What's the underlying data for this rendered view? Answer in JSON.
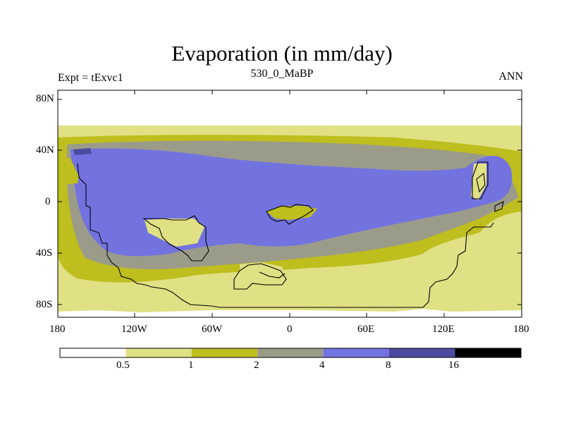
{
  "header": {
    "title": "Evaporation (in mm/day)",
    "left": "Expt = tExvc1",
    "center": "530_0_MaBP",
    "right": "ANN"
  },
  "axes": {
    "lat_ticks": [
      "80N",
      "40N",
      "0",
      "40S",
      "80S"
    ],
    "lon_ticks": [
      "180",
      "120W",
      "60W",
      "0",
      "60E",
      "120E",
      "180"
    ]
  },
  "colorbar": {
    "labels": [
      "0.5",
      "1",
      "2",
      "4",
      "8",
      "16"
    ],
    "colors": [
      "#ffffff",
      "#e0e085",
      "#bebe1e",
      "#9b9b8a",
      "#7373e0",
      "#4a4aa0",
      "#000000"
    ]
  },
  "colors": {
    "band_lt05": "#ffffff",
    "band_05_1": "#e0e085",
    "band_1_2": "#bebe1e",
    "band_2_4": "#9b9b8a",
    "band_4_8": "#7373e0",
    "band_8_16": "#4a4aa0"
  }
}
